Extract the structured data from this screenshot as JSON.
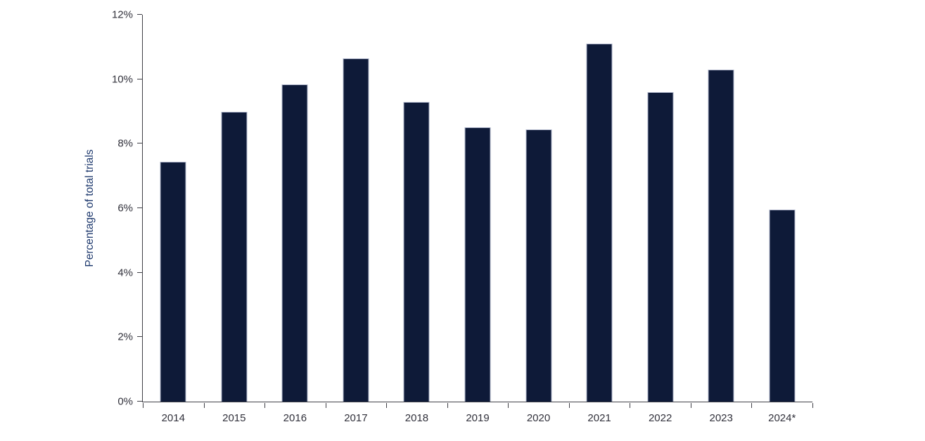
{
  "chart_data": {
    "type": "bar",
    "title": "",
    "xlabel": "",
    "ylabel": "Percentage of total trials",
    "categories": [
      "2014",
      "2015",
      "2016",
      "2017",
      "2018",
      "2019",
      "2020",
      "2021",
      "2022",
      "2023",
      "2024*"
    ],
    "values": [
      7.45,
      9.0,
      9.85,
      10.65,
      9.3,
      8.5,
      8.45,
      11.1,
      9.6,
      10.3,
      5.95
    ],
    "unit": "%",
    "ylim": [
      0,
      12
    ],
    "yticks": [
      0,
      2,
      4,
      6,
      8,
      10,
      12
    ],
    "ytick_suffix": "%",
    "grid": false,
    "legend": null,
    "colors": {
      "bar_fill": "#0e1a38",
      "bar_border": "#aeb4ca",
      "axis": "#3f3f46",
      "tick_label": "#31313b",
      "ylabel": "#1f3a6e",
      "background": "#ffffff"
    }
  }
}
